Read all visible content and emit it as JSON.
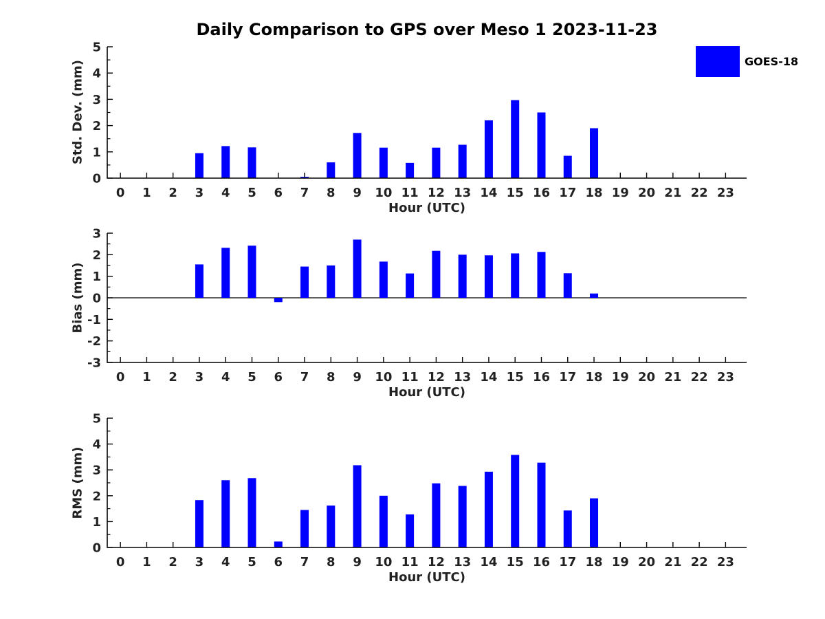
{
  "title": "Daily Comparison to GPS over Meso 1 2023-11-23",
  "legend": {
    "label": "GOES-18",
    "swatch_color": "#0000FF"
  },
  "colors": {
    "bar": "#0000FF",
    "axis": "#000000",
    "tick_text": "#212121"
  },
  "chart_data": [
    {
      "type": "bar",
      "title": "Daily Comparison to GPS over Meso 1 2023-11-23",
      "ylabel": "Std. Dev. (mm)",
      "xlabel": "Hour (UTC)",
      "categories": [
        0,
        1,
        2,
        3,
        4,
        5,
        6,
        7,
        8,
        9,
        10,
        11,
        12,
        13,
        14,
        15,
        16,
        17,
        18,
        19,
        20,
        21,
        22,
        23
      ],
      "values": [
        0,
        0,
        0,
        0.95,
        1.22,
        1.17,
        0,
        0.05,
        0.6,
        1.72,
        1.16,
        0.58,
        1.16,
        1.27,
        2.2,
        2.97,
        2.5,
        0.85,
        1.9,
        0,
        0,
        0,
        0,
        0
      ],
      "ylim": [
        0,
        5
      ],
      "yticks": [
        0,
        1,
        2,
        3,
        4,
        5
      ],
      "xlim": [
        -0.5,
        23.8
      ],
      "grid": false,
      "legend_entries": [
        "GOES-18"
      ],
      "legend_position": "upper-right",
      "zero_line": false
    },
    {
      "type": "bar",
      "ylabel": "Bias (mm)",
      "xlabel": "Hour (UTC)",
      "categories": [
        0,
        1,
        2,
        3,
        4,
        5,
        6,
        7,
        8,
        9,
        10,
        11,
        12,
        13,
        14,
        15,
        16,
        17,
        18,
        19,
        20,
        21,
        22,
        23
      ],
      "values": [
        0,
        0,
        0,
        1.55,
        2.32,
        2.42,
        -0.2,
        1.45,
        1.5,
        2.7,
        1.68,
        1.13,
        2.18,
        2.0,
        1.97,
        2.06,
        2.13,
        1.14,
        0.2,
        0,
        0,
        0,
        0,
        0
      ],
      "ylim": [
        -3,
        3
      ],
      "yticks": [
        -3,
        -2,
        -1,
        0,
        1,
        2,
        3
      ],
      "xlim": [
        -0.5,
        23.8
      ],
      "grid": false,
      "zero_line": true
    },
    {
      "type": "bar",
      "ylabel": "RMS (mm)",
      "xlabel": "Hour (UTC)",
      "categories": [
        0,
        1,
        2,
        3,
        4,
        5,
        6,
        7,
        8,
        9,
        10,
        11,
        12,
        13,
        14,
        15,
        16,
        17,
        18,
        19,
        20,
        21,
        22,
        23
      ],
      "values": [
        0,
        0,
        0,
        1.83,
        2.6,
        2.68,
        0.23,
        1.45,
        1.62,
        3.18,
        2.0,
        1.28,
        2.48,
        2.38,
        2.93,
        3.58,
        3.28,
        1.43,
        1.9,
        0,
        0,
        0,
        0,
        0
      ],
      "ylim": [
        0,
        5
      ],
      "yticks": [
        0,
        1,
        2,
        3,
        4,
        5
      ],
      "xlim": [
        -0.5,
        23.8
      ],
      "grid": false,
      "zero_line": false
    }
  ]
}
